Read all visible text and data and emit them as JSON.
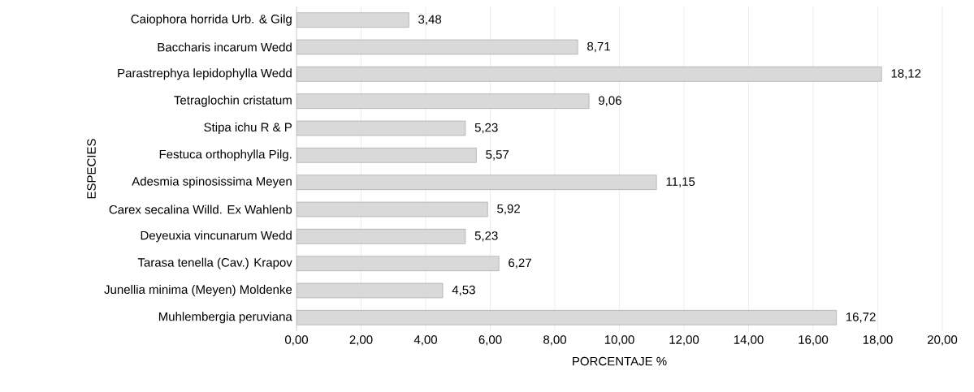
{
  "chart_data": {
    "type": "bar",
    "orientation": "horizontal",
    "xlabel": "PORCENTAJE %",
    "ylabel": "ESPECIES",
    "categories": [
      "Caiophora horrida Urb. & Gilg",
      "Baccharis incarum Wedd",
      "Parastrephya lepidophylla Wedd",
      "Tetraglochin cristatum",
      "Stipa ichu R & P",
      "Festuca orthophylla Pilg.",
      "Adesmia spinosissima Meyen",
      "Carex secalina Willd. Ex Wahlenb",
      "Deyeuxia vincunarum Wedd",
      "Tarasa tenella (Cav.) Krapov",
      "Junellia minima (Meyen) Moldenke",
      "Muhlembergia peruviana"
    ],
    "values": [
      3.48,
      8.71,
      18.12,
      9.06,
      5.23,
      5.57,
      11.15,
      5.92,
      5.23,
      6.27,
      4.53,
      16.72
    ],
    "value_labels": [
      "3,48",
      "8,71",
      "18,12",
      "9,06",
      "5,23",
      "5,57",
      "11,15",
      "5,92",
      "5,23",
      "6,27",
      "4,53",
      "16,72"
    ],
    "color": "#d9d9d9",
    "xlim": [
      0,
      20
    ],
    "xticks": [
      {
        "value": 0,
        "label": "0,00"
      },
      {
        "value": 2,
        "label": "2,00"
      },
      {
        "value": 4,
        "label": "4,00"
      },
      {
        "value": 6,
        "label": "6,00"
      },
      {
        "value": 8,
        "label": "8,00"
      },
      {
        "value": 10,
        "label": "10,00"
      },
      {
        "value": 12,
        "label": "12,00"
      },
      {
        "value": 14,
        "label": "14,00"
      },
      {
        "value": 16,
        "label": "16,00"
      },
      {
        "value": 18,
        "label": "18,00"
      },
      {
        "value": 20,
        "label": "20,00"
      }
    ],
    "grid": "x"
  }
}
